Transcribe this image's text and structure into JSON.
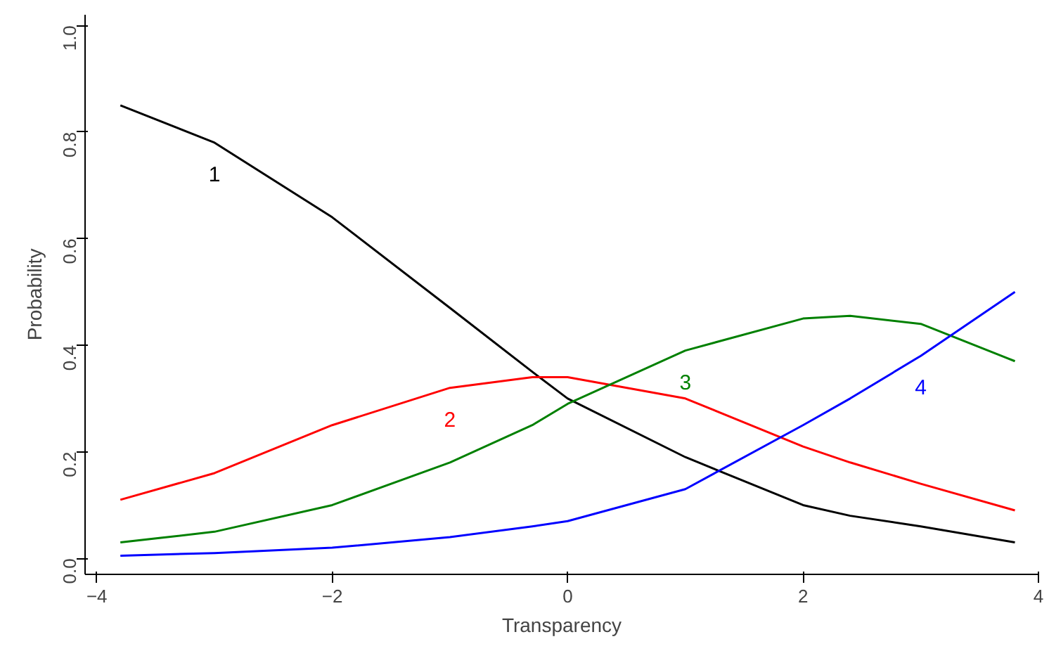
{
  "chart_data": {
    "type": "line",
    "xlabel": "Transparency",
    "ylabel": "Probability",
    "x": [
      -3.8,
      -3,
      -2,
      -1,
      -0.3,
      0,
      1,
      2,
      2.4,
      3,
      3.8
    ],
    "series": [
      {
        "name": "1",
        "color": "#000000",
        "values": [
          0.85,
          0.78,
          0.64,
          0.47,
          0.35,
          0.3,
          0.19,
          0.1,
          0.08,
          0.06,
          0.03
        ]
      },
      {
        "name": "2",
        "color": "#ff0000",
        "values": [
          0.11,
          0.16,
          0.25,
          0.32,
          0.34,
          0.34,
          0.3,
          0.21,
          0.18,
          0.14,
          0.09
        ]
      },
      {
        "name": "3",
        "color": "#008000",
        "values": [
          0.03,
          0.05,
          0.1,
          0.18,
          0.25,
          0.29,
          0.39,
          0.45,
          0.455,
          0.44,
          0.37
        ]
      },
      {
        "name": "4",
        "color": "#0000ff",
        "values": [
          0.005,
          0.01,
          0.02,
          0.04,
          0.06,
          0.07,
          0.13,
          0.25,
          0.3,
          0.38,
          0.5
        ]
      }
    ],
    "xlim": [
      -4.1,
      4.0
    ],
    "ylim": [
      -0.03,
      1.02
    ],
    "xticks": [
      -4,
      -2,
      0,
      2,
      4
    ],
    "yticks": [
      {
        "value": 0,
        "label": "0.0"
      },
      {
        "value": 0.2,
        "label": "0.2"
      },
      {
        "value": 0.4,
        "label": "0.4"
      },
      {
        "value": 0.6,
        "label": "0.6"
      },
      {
        "value": 0.8,
        "label": "0.8"
      },
      {
        "value": 1.0,
        "label": "1.0"
      }
    ],
    "grid": false,
    "legend": false,
    "marker": "none",
    "line_style": "solid"
  }
}
